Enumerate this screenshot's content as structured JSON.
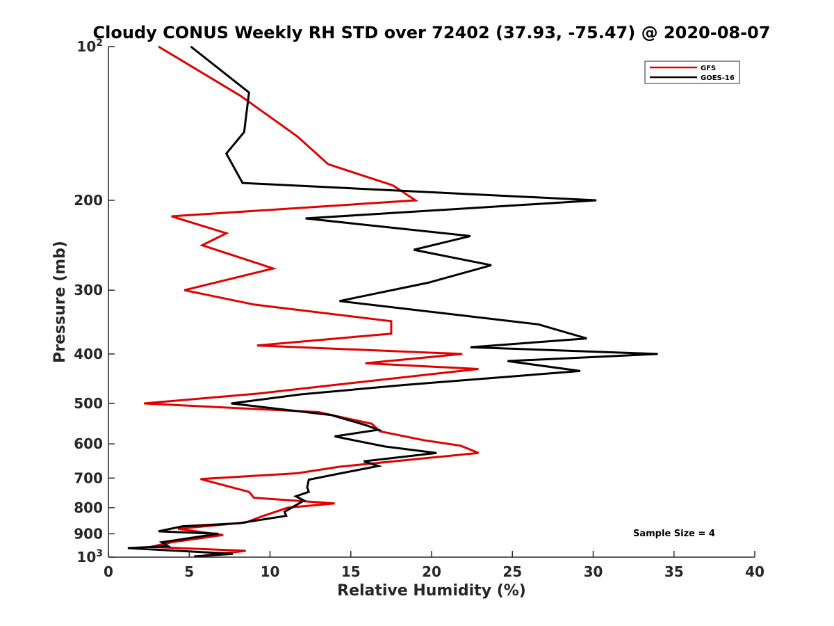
{
  "chart_data": {
    "type": "line",
    "title": "Cloudy CONUS Weekly RH STD over 72402 (37.93, -75.47) @ 2020-08-07",
    "xlabel": "Relative Humidity (%)",
    "ylabel": "Pressure (mb)",
    "xlim": [
      0,
      40
    ],
    "ylim": [
      100,
      1000
    ],
    "yscale": "log",
    "y_reversed": true,
    "grid": false,
    "legend_position": "top-right",
    "x_ticks": [
      "0",
      "5",
      "10",
      "15",
      "20",
      "25",
      "30",
      "35",
      "40"
    ],
    "y_ticks": [
      {
        "value": 100,
        "base": "10",
        "exp": "2"
      },
      {
        "value": 200,
        "label": "200"
      },
      {
        "value": 300,
        "label": "300"
      },
      {
        "value": 400,
        "label": "400"
      },
      {
        "value": 500,
        "label": "500"
      },
      {
        "value": 600,
        "label": "600"
      },
      {
        "value": 700,
        "label": "700"
      },
      {
        "value": 800,
        "label": "800"
      },
      {
        "value": 900,
        "label": "900"
      },
      {
        "value": 1000,
        "base": "10",
        "exp": "3"
      }
    ],
    "annotation": "Sample Size = 4",
    "series": [
      {
        "name": "GFS",
        "color": "#e00000",
        "points": [
          [
            3.1,
            100
          ],
          [
            8.2,
            125
          ],
          [
            11.7,
            150
          ],
          [
            13.6,
            170
          ],
          [
            17.6,
            187
          ],
          [
            19.0,
            200
          ],
          [
            3.9,
            215
          ],
          [
            7.3,
            232
          ],
          [
            5.8,
            245
          ],
          [
            10.2,
            272
          ],
          [
            4.7,
            300
          ],
          [
            9.0,
            320
          ],
          [
            17.5,
            345
          ],
          [
            17.5,
            365
          ],
          [
            9.2,
            385
          ],
          [
            21.9,
            400
          ],
          [
            15.9,
            417
          ],
          [
            22.9,
            428
          ],
          [
            14.5,
            458
          ],
          [
            9.3,
            478
          ],
          [
            2.2,
            500
          ],
          [
            13.0,
            520
          ],
          [
            16.3,
            548
          ],
          [
            16.8,
            567
          ],
          [
            19.5,
            590
          ],
          [
            21.8,
            605
          ],
          [
            22.9,
            625
          ],
          [
            14.3,
            665
          ],
          [
            11.7,
            685
          ],
          [
            5.7,
            703
          ],
          [
            8.7,
            745
          ],
          [
            9.0,
            765
          ],
          [
            14.0,
            785
          ],
          [
            11.1,
            800
          ],
          [
            9.6,
            830
          ],
          [
            8.5,
            855
          ],
          [
            4.3,
            880
          ],
          [
            7.1,
            905
          ],
          [
            3.9,
            935
          ],
          [
            2.6,
            955
          ],
          [
            8.5,
            972
          ],
          [
            5.9,
            993
          ]
        ]
      },
      {
        "name": "GOES-16",
        "color": "#000000",
        "points": [
          [
            5.1,
            100
          ],
          [
            8.7,
            123
          ],
          [
            8.4,
            147
          ],
          [
            7.3,
            162
          ],
          [
            8.3,
            185
          ],
          [
            30.2,
            200
          ],
          [
            12.2,
            217
          ],
          [
            22.4,
            235
          ],
          [
            18.9,
            250
          ],
          [
            23.7,
            268
          ],
          [
            19.8,
            290
          ],
          [
            14.3,
            315
          ],
          [
            26.6,
            350
          ],
          [
            29.6,
            373
          ],
          [
            22.4,
            388
          ],
          [
            34.0,
            400
          ],
          [
            24.7,
            413
          ],
          [
            29.2,
            432
          ],
          [
            18.3,
            460
          ],
          [
            11.9,
            480
          ],
          [
            7.6,
            500
          ],
          [
            13.8,
            527
          ],
          [
            15.9,
            551
          ],
          [
            16.7,
            563
          ],
          [
            14.0,
            580
          ],
          [
            17.1,
            607
          ],
          [
            20.3,
            625
          ],
          [
            15.8,
            649
          ],
          [
            16.7,
            663
          ],
          [
            14.4,
            685
          ],
          [
            12.4,
            705
          ],
          [
            12.3,
            730
          ],
          [
            12.4,
            745
          ],
          [
            11.6,
            760
          ],
          [
            12.1,
            775
          ],
          [
            10.9,
            815
          ],
          [
            11.0,
            830
          ],
          [
            8.1,
            858
          ],
          [
            4.6,
            870
          ],
          [
            3.1,
            890
          ],
          [
            6.8,
            900
          ],
          [
            3.3,
            935
          ],
          [
            3.7,
            952
          ],
          [
            1.2,
            960
          ],
          [
            7.7,
            985
          ],
          [
            5.3,
            997
          ]
        ]
      }
    ]
  }
}
